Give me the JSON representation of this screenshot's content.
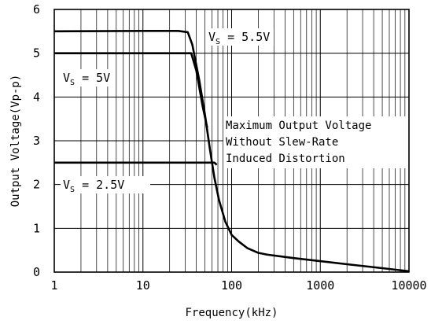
{
  "chart_data": {
    "type": "line",
    "title": "",
    "xlabel": "Frequency(kHz)",
    "ylabel": "Output Voltage(Vp-p)",
    "xscale": "log",
    "xlim": [
      1,
      10000
    ],
    "ylim": [
      0,
      6
    ],
    "x_ticks": [
      1,
      10,
      100,
      1000,
      10000
    ],
    "y_ticks": [
      0,
      1,
      2,
      3,
      4,
      5,
      6
    ],
    "grid": true,
    "series": [
      {
        "name": "VS = 5.5V",
        "label_sub": "S",
        "label_rest": " = 5.5V",
        "points": [
          [
            1,
            5.5
          ],
          [
            10,
            5.51
          ],
          [
            25,
            5.51
          ],
          [
            32,
            5.48
          ],
          [
            36,
            5.2
          ],
          [
            43,
            4.4
          ],
          [
            50,
            3.6
          ],
          [
            57,
            2.8
          ],
          [
            64,
            2.15
          ],
          [
            72,
            1.65
          ],
          [
            85,
            1.15
          ],
          [
            100,
            0.85
          ],
          [
            120,
            0.7
          ],
          [
            150,
            0.55
          ],
          [
            200,
            0.44
          ],
          [
            250,
            0.4
          ],
          [
            500,
            0.32
          ],
          [
            1000,
            0.25
          ],
          [
            2000,
            0.18
          ],
          [
            5000,
            0.09
          ],
          [
            10000,
            0.02
          ]
        ]
      },
      {
        "name": "VS = 5V",
        "label_sub": "S",
        "label_rest": " = 5V",
        "points": [
          [
            1,
            5.0
          ],
          [
            10,
            5.0
          ],
          [
            30,
            5.0
          ],
          [
            35,
            5.0
          ],
          [
            40,
            4.6
          ],
          [
            47,
            3.8
          ],
          [
            53,
            3.3
          ]
        ]
      },
      {
        "name": "VS = 2.5V",
        "label_sub": "S",
        "label_rest": " = 2.5V",
        "points": [
          [
            1,
            2.5
          ],
          [
            10,
            2.5
          ],
          [
            40,
            2.5
          ],
          [
            64,
            2.5
          ],
          [
            68,
            2.45
          ]
        ]
      }
    ],
    "annotation": [
      "Maximum Output Voltage",
      "Without Slew-Rate",
      "Induced Distortion"
    ]
  }
}
